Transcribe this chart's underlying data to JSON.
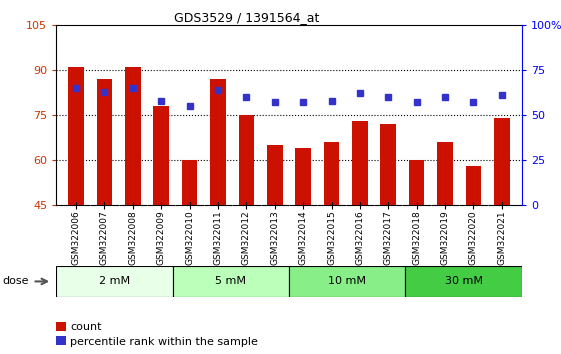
{
  "title": "GDS3529 / 1391564_at",
  "samples": [
    "GSM322006",
    "GSM322007",
    "GSM322008",
    "GSM322009",
    "GSM322010",
    "GSM322011",
    "GSM322012",
    "GSM322013",
    "GSM322014",
    "GSM322015",
    "GSM322016",
    "GSM322017",
    "GSM322018",
    "GSM322019",
    "GSM322020",
    "GSM322021"
  ],
  "counts": [
    91,
    87,
    91,
    78,
    60,
    87,
    75,
    65,
    64,
    66,
    73,
    72,
    60,
    66,
    58,
    74
  ],
  "percentiles": [
    65,
    63,
    65,
    58,
    55,
    64,
    60,
    57,
    57,
    58,
    62,
    60,
    57,
    60,
    57,
    61
  ],
  "bar_color": "#cc1100",
  "dot_color": "#3333cc",
  "ylim_left": [
    45,
    105
  ],
  "ylim_right": [
    0,
    100
  ],
  "yticks_left": [
    45,
    60,
    75,
    90,
    105
  ],
  "yticks_right": [
    0,
    25,
    50,
    75,
    100
  ],
  "yticklabels_left": [
    "45",
    "60",
    "75",
    "90",
    "105"
  ],
  "yticklabels_right": [
    "0",
    "25",
    "50",
    "75",
    "100%"
  ],
  "dose_groups": [
    {
      "label": "2 mM",
      "start": 0,
      "end": 4,
      "color": "#e8ffe8"
    },
    {
      "label": "5 mM",
      "start": 4,
      "end": 8,
      "color": "#bbffbb"
    },
    {
      "label": "10 mM",
      "start": 8,
      "end": 12,
      "color": "#88ee88"
    },
    {
      "label": "30 mM",
      "start": 12,
      "end": 16,
      "color": "#44cc44"
    }
  ],
  "dose_label": "dose",
  "legend_count_label": "count",
  "legend_pct_label": "percentile rank within the sample",
  "plot_bg": "#ffffff",
  "xtick_bg": "#cccccc",
  "bar_width": 0.55
}
